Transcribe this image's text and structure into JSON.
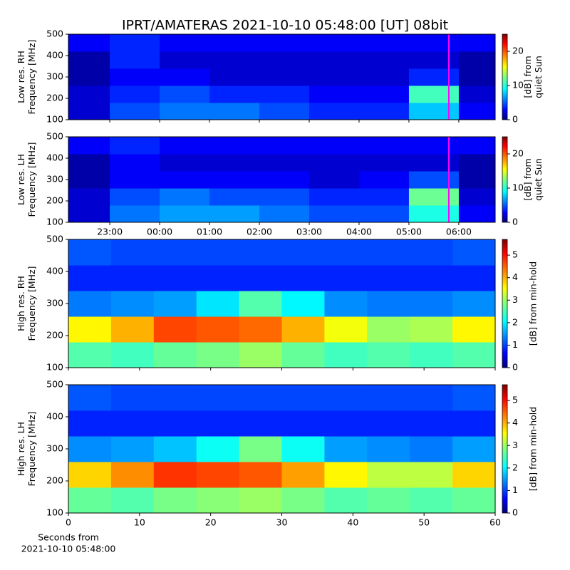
{
  "title": "IPRT/AMATERAS 2021-10-10 05:48:00 [UT]   08bit",
  "chart_data": [
    {
      "type": "heatmap",
      "ylabel": [
        "Low res. RH",
        "Frequency [MHz]"
      ],
      "clabel": [
        "[dB] from",
        "quiet Sun"
      ],
      "xlim": [
        -1.83,
        6.73
      ],
      "xticks": [
        -1,
        0,
        1,
        2,
        3,
        4,
        5,
        6
      ],
      "ylim": [
        100,
        500
      ],
      "yticks": [
        100,
        200,
        300,
        400,
        500
      ],
      "clim": [
        0,
        25
      ],
      "cticks": [
        0,
        10,
        20
      ],
      "xbins": [
        -1.83,
        -1,
        0,
        1,
        2,
        3,
        4,
        5,
        6,
        6.73
      ],
      "ybins": [
        100,
        180,
        260,
        340,
        420,
        500
      ],
      "values": [
        [
          2,
          5,
          6,
          6,
          5,
          4,
          4,
          8,
          3
        ],
        [
          2,
          4,
          5,
          4,
          4,
          3,
          3,
          11,
          2
        ],
        [
          1,
          3,
          3,
          2,
          2,
          2,
          2,
          4,
          1
        ],
        [
          1,
          4,
          2,
          2,
          2,
          2,
          2,
          2,
          1
        ],
        [
          3,
          4,
          3,
          3,
          3,
          3,
          3,
          3,
          3
        ]
      ],
      "marker": {
        "value": 5.8,
        "color": "#ff00ff"
      }
    },
    {
      "type": "heatmap",
      "ylabel": [
        "Low res. LH",
        "Frequency [MHz]"
      ],
      "clabel": [
        "[dB] from",
        "quiet Sun"
      ],
      "xlim": [
        -1.83,
        6.73
      ],
      "xticks": [
        {
          "value": -1,
          "label": "23:00"
        },
        {
          "value": 0,
          "label": "00:00"
        },
        {
          "value": 1,
          "label": "01:00"
        },
        {
          "value": 2,
          "label": "02:00"
        },
        {
          "value": 3,
          "label": "03:00"
        },
        {
          "value": 4,
          "label": "04:00"
        },
        {
          "value": 5,
          "label": "05:00"
        },
        {
          "value": 6,
          "label": "06:00"
        }
      ],
      "ylim": [
        100,
        500
      ],
      "yticks": [
        100,
        200,
        300,
        400,
        500
      ],
      "clim": [
        0,
        25
      ],
      "cticks": [
        0,
        10,
        20
      ],
      "xbins": [
        -1.83,
        -1,
        0,
        1,
        2,
        3,
        4,
        5,
        6,
        6.73
      ],
      "ybins": [
        100,
        180,
        260,
        340,
        420,
        500
      ],
      "values": [
        [
          2,
          6,
          7,
          7,
          6,
          5,
          5,
          10,
          3
        ],
        [
          2,
          5,
          6,
          5,
          5,
          4,
          4,
          12,
          2
        ],
        [
          1,
          3,
          3,
          3,
          3,
          2,
          3,
          5,
          1
        ],
        [
          1,
          3,
          2,
          2,
          2,
          2,
          2,
          2,
          1
        ],
        [
          3,
          4,
          3,
          3,
          3,
          3,
          3,
          3,
          3
        ]
      ],
      "marker": {
        "value": 5.8,
        "color": "#ff00ff"
      }
    },
    {
      "type": "heatmap",
      "ylabel": [
        "High res. RH",
        "Frequency [MHz]"
      ],
      "clabel": [
        "[dB] from min-hold"
      ],
      "xlim": [
        0,
        60
      ],
      "xticks": [
        0,
        10,
        20,
        30,
        40,
        50,
        60
      ],
      "ylim": [
        100,
        500
      ],
      "yticks": [
        100,
        200,
        300,
        400,
        500
      ],
      "clim": [
        0,
        5.7
      ],
      "cticks": [
        0,
        1,
        2,
        3,
        4,
        5
      ],
      "xbins": [
        0,
        6,
        12,
        18,
        24,
        30,
        36,
        42,
        48,
        54,
        60
      ],
      "ybins": [
        100,
        180,
        260,
        340,
        420,
        500
      ],
      "values": [
        [
          2.6,
          2.5,
          2.7,
          2.8,
          3,
          2.7,
          2.5,
          2.6,
          2.5,
          2.6
        ],
        [
          3.6,
          4,
          4.6,
          4.5,
          4.4,
          4,
          3.5,
          3,
          3.1,
          3.6
        ],
        [
          1.4,
          1.5,
          1.6,
          2,
          2.6,
          2.1,
          1.5,
          1.4,
          1.4,
          1.5
        ],
        [
          0.9,
          0.9,
          0.9,
          0.9,
          0.9,
          0.9,
          0.9,
          0.9,
          0.9,
          0.9
        ],
        [
          1.2,
          1.1,
          1.1,
          1.1,
          1.1,
          1.1,
          1.1,
          1.1,
          1.1,
          1.2
        ]
      ]
    },
    {
      "type": "heatmap",
      "ylabel": [
        "High res. LH",
        "Frequency [MHz]"
      ],
      "clabel": [
        "[dB] from min-hold"
      ],
      "xlim": [
        0,
        60
      ],
      "xticks": [
        0,
        10,
        20,
        30,
        40,
        50,
        60
      ],
      "xlabel": [
        "Seconds from",
        "2021-10-10 05:48:00"
      ],
      "ylim": [
        100,
        500
      ],
      "yticks": [
        100,
        200,
        300,
        400,
        500
      ],
      "clim": [
        0,
        5.7
      ],
      "cticks": [
        0,
        1,
        2,
        3,
        4,
        5
      ],
      "xbins": [
        0,
        6,
        12,
        18,
        24,
        30,
        36,
        42,
        48,
        54,
        60
      ],
      "ybins": [
        100,
        180,
        260,
        340,
        420,
        500
      ],
      "values": [
        [
          2.7,
          2.6,
          2.8,
          2.9,
          3,
          2.8,
          2.6,
          2.7,
          2.6,
          2.7
        ],
        [
          3.8,
          4.2,
          4.7,
          4.6,
          4.5,
          4.1,
          3.6,
          3.2,
          3.2,
          3.8
        ],
        [
          1.5,
          1.6,
          1.8,
          2.2,
          2.8,
          2.2,
          1.6,
          1.5,
          1.4,
          1.6
        ],
        [
          0.9,
          0.9,
          0.9,
          0.9,
          0.9,
          0.9,
          0.9,
          0.9,
          0.9,
          0.9
        ],
        [
          1.2,
          1.1,
          1.1,
          1.1,
          1.1,
          1.1,
          1.1,
          1.1,
          1.1,
          1.2
        ]
      ]
    }
  ]
}
